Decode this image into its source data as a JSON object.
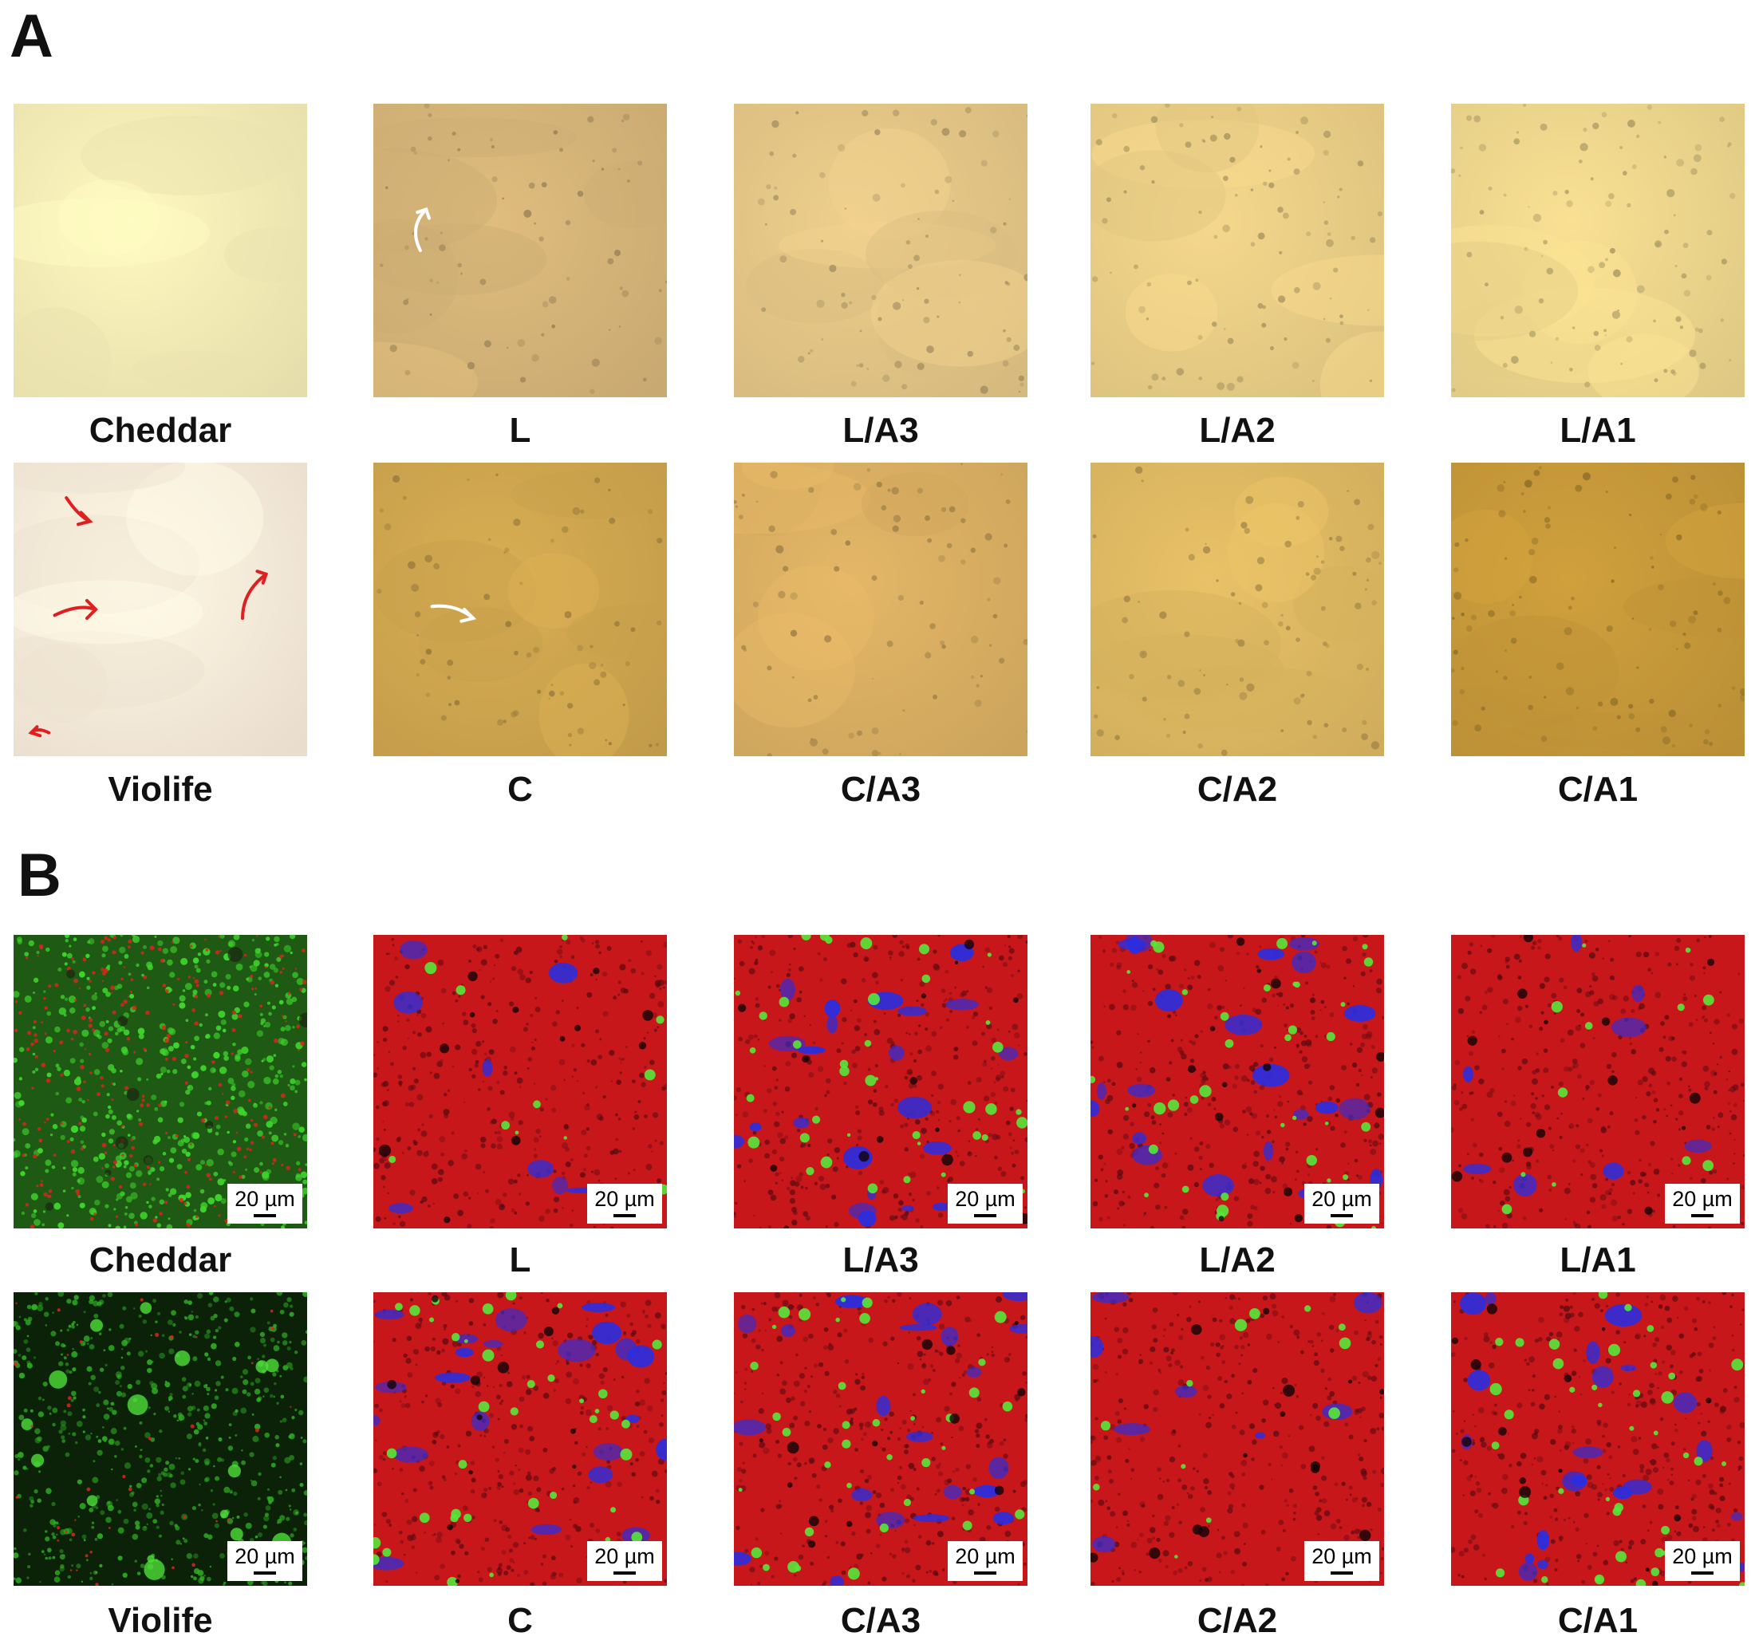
{
  "panels": {
    "a": {
      "letter": "A",
      "row1_labels": [
        "Cheddar",
        "L",
        "L/A3",
        "L/A2",
        "L/A1"
      ],
      "row2_labels": [
        "Violife",
        "C",
        "C/A3",
        "C/A2",
        "C/A1"
      ],
      "row1_colors": [
        "#f6eeb8",
        "#d7b679",
        "#e5c787",
        "#ecd087",
        "#efd78d"
      ],
      "row2_colors": [
        "#fbeedc",
        "#d1a750",
        "#dbb063",
        "#e0ba63",
        "#c89a3a"
      ]
    },
    "b": {
      "letter": "B",
      "row1_labels": [
        "Cheddar",
        "L",
        "L/A3",
        "L/A2",
        "L/A1"
      ],
      "row2_labels": [
        "Violife",
        "C",
        "C/A3",
        "C/A2",
        "C/A1"
      ],
      "scale_bar": "20 µm"
    }
  }
}
